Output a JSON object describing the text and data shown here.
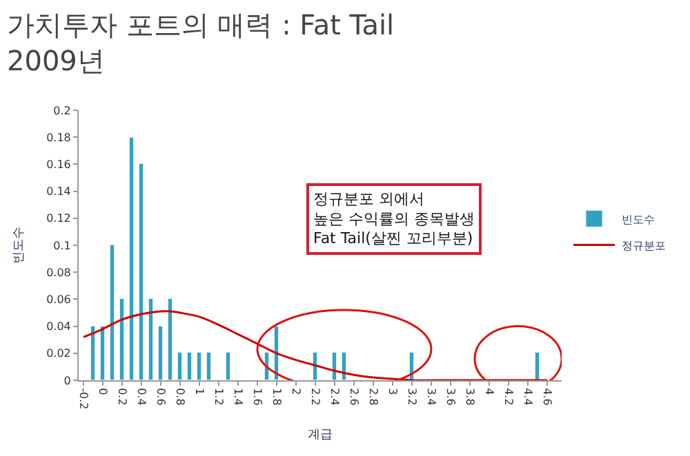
{
  "chart_data": {
    "type": "bar",
    "title": "가치투자 포트의 매력 : Fat Tail\n2009년",
    "xlabel": "계급",
    "ylabel": "빈도수",
    "xlim": [
      -0.25,
      4.75
    ],
    "xticks": [
      -0.2,
      0,
      0.2,
      0.4,
      0.6,
      0.8,
      1,
      1.2,
      1.4,
      1.6,
      1.8,
      2,
      2.2,
      2.4,
      2.6,
      2.8,
      3,
      3.2,
      3.4,
      3.6,
      3.8,
      4,
      4.2,
      4.4,
      4.6
    ],
    "ylim": [
      0,
      0.2
    ],
    "yticks": [
      0,
      0.02,
      0.04,
      0.06,
      0.08,
      0.1,
      0.12,
      0.14,
      0.16,
      0.18,
      0.2
    ],
    "legend": "right",
    "series": [
      {
        "name": "빈도수",
        "color": "#2ea3c1",
        "x": [
          -0.1,
          0,
          0.1,
          0.2,
          0.3,
          0.4,
          0.5,
          0.6,
          0.7,
          0.8,
          0.9,
          1.0,
          1.1,
          1.3,
          1.7,
          1.8,
          2.2,
          2.4,
          2.5,
          3.2,
          4.5
        ],
        "values": [
          0.04,
          0.04,
          0.1,
          0.06,
          0.18,
          0.16,
          0.06,
          0.04,
          0.06,
          0.02,
          0.02,
          0.02,
          0.02,
          0.02,
          0.02,
          0.04,
          0.02,
          0.02,
          0.02,
          0.02,
          0.02
        ]
      },
      {
        "name": "정규분포",
        "type": "line",
        "color": "#cc0000",
        "marker": "none",
        "x": [
          -0.2,
          0,
          0.2,
          0.4,
          0.6,
          0.7,
          0.8,
          1.0,
          1.2,
          1.4,
          1.6,
          1.8,
          2.0,
          2.2,
          2.4,
          2.6,
          2.8,
          3.0,
          3.2,
          3.6,
          4.0,
          4.6
        ],
        "values": [
          0.032,
          0.038,
          0.045,
          0.049,
          0.051,
          0.051,
          0.05,
          0.047,
          0.041,
          0.034,
          0.027,
          0.02,
          0.015,
          0.011,
          0.007,
          0.004,
          0.002,
          0.001,
          0.0,
          0.0,
          0.0,
          0.0
        ]
      }
    ],
    "annotations": [
      "정규분포 외에서\n높은 수익률의 종목발생\nFat Tail(살찐 꼬리부분)"
    ]
  }
}
